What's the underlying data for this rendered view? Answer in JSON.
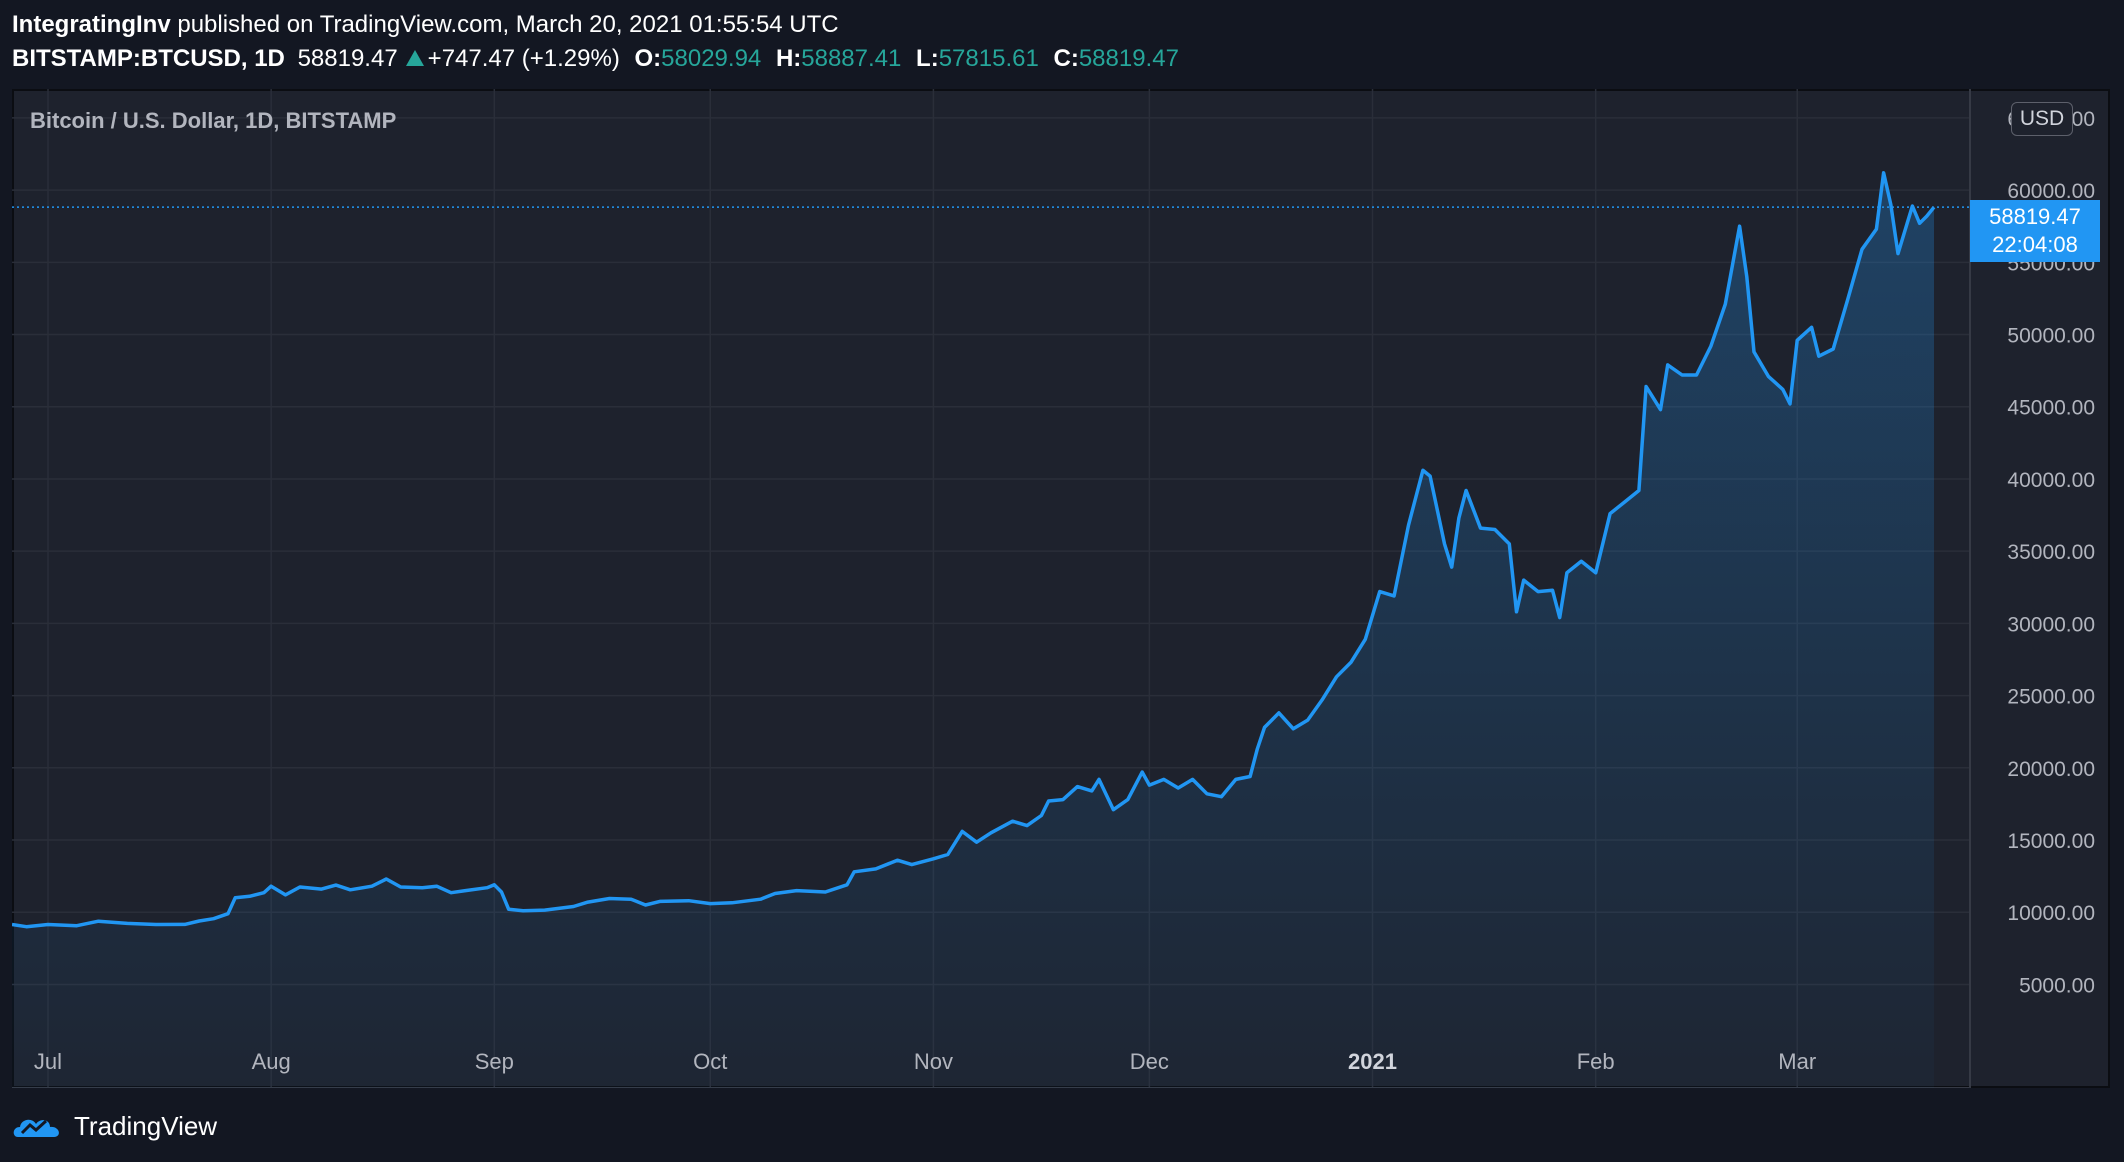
{
  "header": {
    "author": "IntegratingInv",
    "published_text": "published on TradingView.com, March 20, 2021 01:55:54 UTC",
    "symbol": "BITSTAMP:BTCUSD, 1D",
    "last": "58819.47",
    "change": "+747.47 (+1.29%)",
    "open_label": "O:",
    "open": "58029.94",
    "high_label": "H:",
    "high": "58887.41",
    "low_label": "L:",
    "low": "57815.61",
    "close_label": "C:",
    "close": "58819.47"
  },
  "footer": {
    "brand": "TradingView"
  },
  "colors": {
    "background": "#131722",
    "pane": "#1e222d",
    "line": "#2196f3",
    "up": "#26a69a",
    "text": "#b2b5be"
  },
  "price_tag": {
    "price": "58819.47",
    "countdown": "22:04:08"
  },
  "chart_data": {
    "type": "area",
    "title": "Bitcoin / U.S. Dollar, 1D, BITSTAMP",
    "currency_label": "USD",
    "ylim": [
      2400,
      67000
    ],
    "y_ticks": [
      5000,
      10000,
      15000,
      20000,
      25000,
      30000,
      35000,
      40000,
      45000,
      50000,
      55000,
      60000,
      65000
    ],
    "y_tick_labels": [
      "5000.00",
      "10000.00",
      "15000.00",
      "20000.00",
      "25000.00",
      "30000.00",
      "35000.00",
      "40000.00",
      "45000.00",
      "50000.00",
      "55000.00",
      "60000.00",
      "65000.00"
    ],
    "x_ticks": [
      {
        "label": "Jul",
        "date": "2020-07-01",
        "bold": false
      },
      {
        "label": "Aug",
        "date": "2020-08-01",
        "bold": false
      },
      {
        "label": "Sep",
        "date": "2020-09-01",
        "bold": false
      },
      {
        "label": "Oct",
        "date": "2020-10-01",
        "bold": false
      },
      {
        "label": "Nov",
        "date": "2020-11-01",
        "bold": false
      },
      {
        "label": "Dec",
        "date": "2020-12-01",
        "bold": false
      },
      {
        "label": "2021",
        "date": "2021-01-01",
        "bold": true
      },
      {
        "label": "Feb",
        "date": "2021-02-01",
        "bold": false
      },
      {
        "label": "Mar",
        "date": "2021-03-01",
        "bold": false
      }
    ],
    "x_range": [
      "2020-06-26",
      "2021-03-25"
    ],
    "grid": true,
    "last_price": 58819.47,
    "series": [
      {
        "values": [
          [
            "2020-06-26",
            9150
          ],
          [
            "2020-06-28",
            9000
          ],
          [
            "2020-07-01",
            9150
          ],
          [
            "2020-07-05",
            9070
          ],
          [
            "2020-07-08",
            9380
          ],
          [
            "2020-07-12",
            9230
          ],
          [
            "2020-07-16",
            9150
          ],
          [
            "2020-07-20",
            9160
          ],
          [
            "2020-07-22",
            9390
          ],
          [
            "2020-07-24",
            9550
          ],
          [
            "2020-07-26",
            9900
          ],
          [
            "2020-07-27",
            11000
          ],
          [
            "2020-07-29",
            11100
          ],
          [
            "2020-07-31",
            11350
          ],
          [
            "2020-08-01",
            11800
          ],
          [
            "2020-08-03",
            11200
          ],
          [
            "2020-08-05",
            11750
          ],
          [
            "2020-08-08",
            11600
          ],
          [
            "2020-08-10",
            11880
          ],
          [
            "2020-08-12",
            11550
          ],
          [
            "2020-08-15",
            11800
          ],
          [
            "2020-08-17",
            12300
          ],
          [
            "2020-08-19",
            11750
          ],
          [
            "2020-08-22",
            11700
          ],
          [
            "2020-08-24",
            11800
          ],
          [
            "2020-08-26",
            11350
          ],
          [
            "2020-08-28",
            11500
          ],
          [
            "2020-08-31",
            11700
          ],
          [
            "2020-09-01",
            11900
          ],
          [
            "2020-09-02",
            11400
          ],
          [
            "2020-09-03",
            10200
          ],
          [
            "2020-09-05",
            10100
          ],
          [
            "2020-09-08",
            10150
          ],
          [
            "2020-09-12",
            10400
          ],
          [
            "2020-09-14",
            10700
          ],
          [
            "2020-09-17",
            10950
          ],
          [
            "2020-09-20",
            10900
          ],
          [
            "2020-09-22",
            10500
          ],
          [
            "2020-09-24",
            10750
          ],
          [
            "2020-09-28",
            10800
          ],
          [
            "2020-10-01",
            10600
          ],
          [
            "2020-10-04",
            10650
          ],
          [
            "2020-10-08",
            10900
          ],
          [
            "2020-10-10",
            11300
          ],
          [
            "2020-10-13",
            11500
          ],
          [
            "2020-10-17",
            11400
          ],
          [
            "2020-10-20",
            11900
          ],
          [
            "2020-10-21",
            12800
          ],
          [
            "2020-10-24",
            13000
          ],
          [
            "2020-10-27",
            13600
          ],
          [
            "2020-10-29",
            13300
          ],
          [
            "2020-11-01",
            13700
          ],
          [
            "2020-11-03",
            14000
          ],
          [
            "2020-11-05",
            15600
          ],
          [
            "2020-11-07",
            14850
          ],
          [
            "2020-11-09",
            15500
          ],
          [
            "2020-11-12",
            16300
          ],
          [
            "2020-11-14",
            16000
          ],
          [
            "2020-11-16",
            16700
          ],
          [
            "2020-11-17",
            17700
          ],
          [
            "2020-11-19",
            17800
          ],
          [
            "2020-11-21",
            18700
          ],
          [
            "2020-11-23",
            18400
          ],
          [
            "2020-11-24",
            19200
          ],
          [
            "2020-11-26",
            17100
          ],
          [
            "2020-11-28",
            17800
          ],
          [
            "2020-11-30",
            19700
          ],
          [
            "2020-12-01",
            18800
          ],
          [
            "2020-12-03",
            19200
          ],
          [
            "2020-12-05",
            18600
          ],
          [
            "2020-12-07",
            19200
          ],
          [
            "2020-12-09",
            18200
          ],
          [
            "2020-12-11",
            18000
          ],
          [
            "2020-12-13",
            19200
          ],
          [
            "2020-12-15",
            19400
          ],
          [
            "2020-12-16",
            21300
          ],
          [
            "2020-12-17",
            22800
          ],
          [
            "2020-12-19",
            23800
          ],
          [
            "2020-12-21",
            22700
          ],
          [
            "2020-12-23",
            23300
          ],
          [
            "2020-12-25",
            24700
          ],
          [
            "2020-12-27",
            26300
          ],
          [
            "2020-12-29",
            27300
          ],
          [
            "2020-12-31",
            28900
          ],
          [
            "2021-01-02",
            32200
          ],
          [
            "2021-01-04",
            31900
          ],
          [
            "2021-01-06",
            36800
          ],
          [
            "2021-01-08",
            40600
          ],
          [
            "2021-01-09",
            40200
          ],
          [
            "2021-01-11",
            35500
          ],
          [
            "2021-01-12",
            33900
          ],
          [
            "2021-01-13",
            37300
          ],
          [
            "2021-01-14",
            39200
          ],
          [
            "2021-01-16",
            36600
          ],
          [
            "2021-01-18",
            36500
          ],
          [
            "2021-01-20",
            35500
          ],
          [
            "2021-01-21",
            30800
          ],
          [
            "2021-01-22",
            33000
          ],
          [
            "2021-01-24",
            32200
          ],
          [
            "2021-01-26",
            32300
          ],
          [
            "2021-01-27",
            30400
          ],
          [
            "2021-01-28",
            33500
          ],
          [
            "2021-01-30",
            34300
          ],
          [
            "2021-02-01",
            33500
          ],
          [
            "2021-02-03",
            37600
          ],
          [
            "2021-02-05",
            38400
          ],
          [
            "2021-02-07",
            39200
          ],
          [
            "2021-02-08",
            46400
          ],
          [
            "2021-02-10",
            44800
          ],
          [
            "2021-02-11",
            47900
          ],
          [
            "2021-02-13",
            47200
          ],
          [
            "2021-02-15",
            47200
          ],
          [
            "2021-02-17",
            49200
          ],
          [
            "2021-02-19",
            52100
          ],
          [
            "2021-02-21",
            57500
          ],
          [
            "2021-02-22",
            54000
          ],
          [
            "2021-02-23",
            48800
          ],
          [
            "2021-02-25",
            47100
          ],
          [
            "2021-02-27",
            46200
          ],
          [
            "2021-02-28",
            45200
          ],
          [
            "2021-03-01",
            49600
          ],
          [
            "2021-03-03",
            50500
          ],
          [
            "2021-03-04",
            48500
          ],
          [
            "2021-03-06",
            49000
          ],
          [
            "2021-03-08",
            52400
          ],
          [
            "2021-03-10",
            55900
          ],
          [
            "2021-03-12",
            57300
          ],
          [
            "2021-03-13",
            61200
          ],
          [
            "2021-03-14",
            59000
          ],
          [
            "2021-03-15",
            55600
          ],
          [
            "2021-03-17",
            58900
          ],
          [
            "2021-03-18",
            57700
          ],
          [
            "2021-03-19",
            58200
          ],
          [
            "2021-03-20",
            58819
          ]
        ]
      }
    ]
  }
}
